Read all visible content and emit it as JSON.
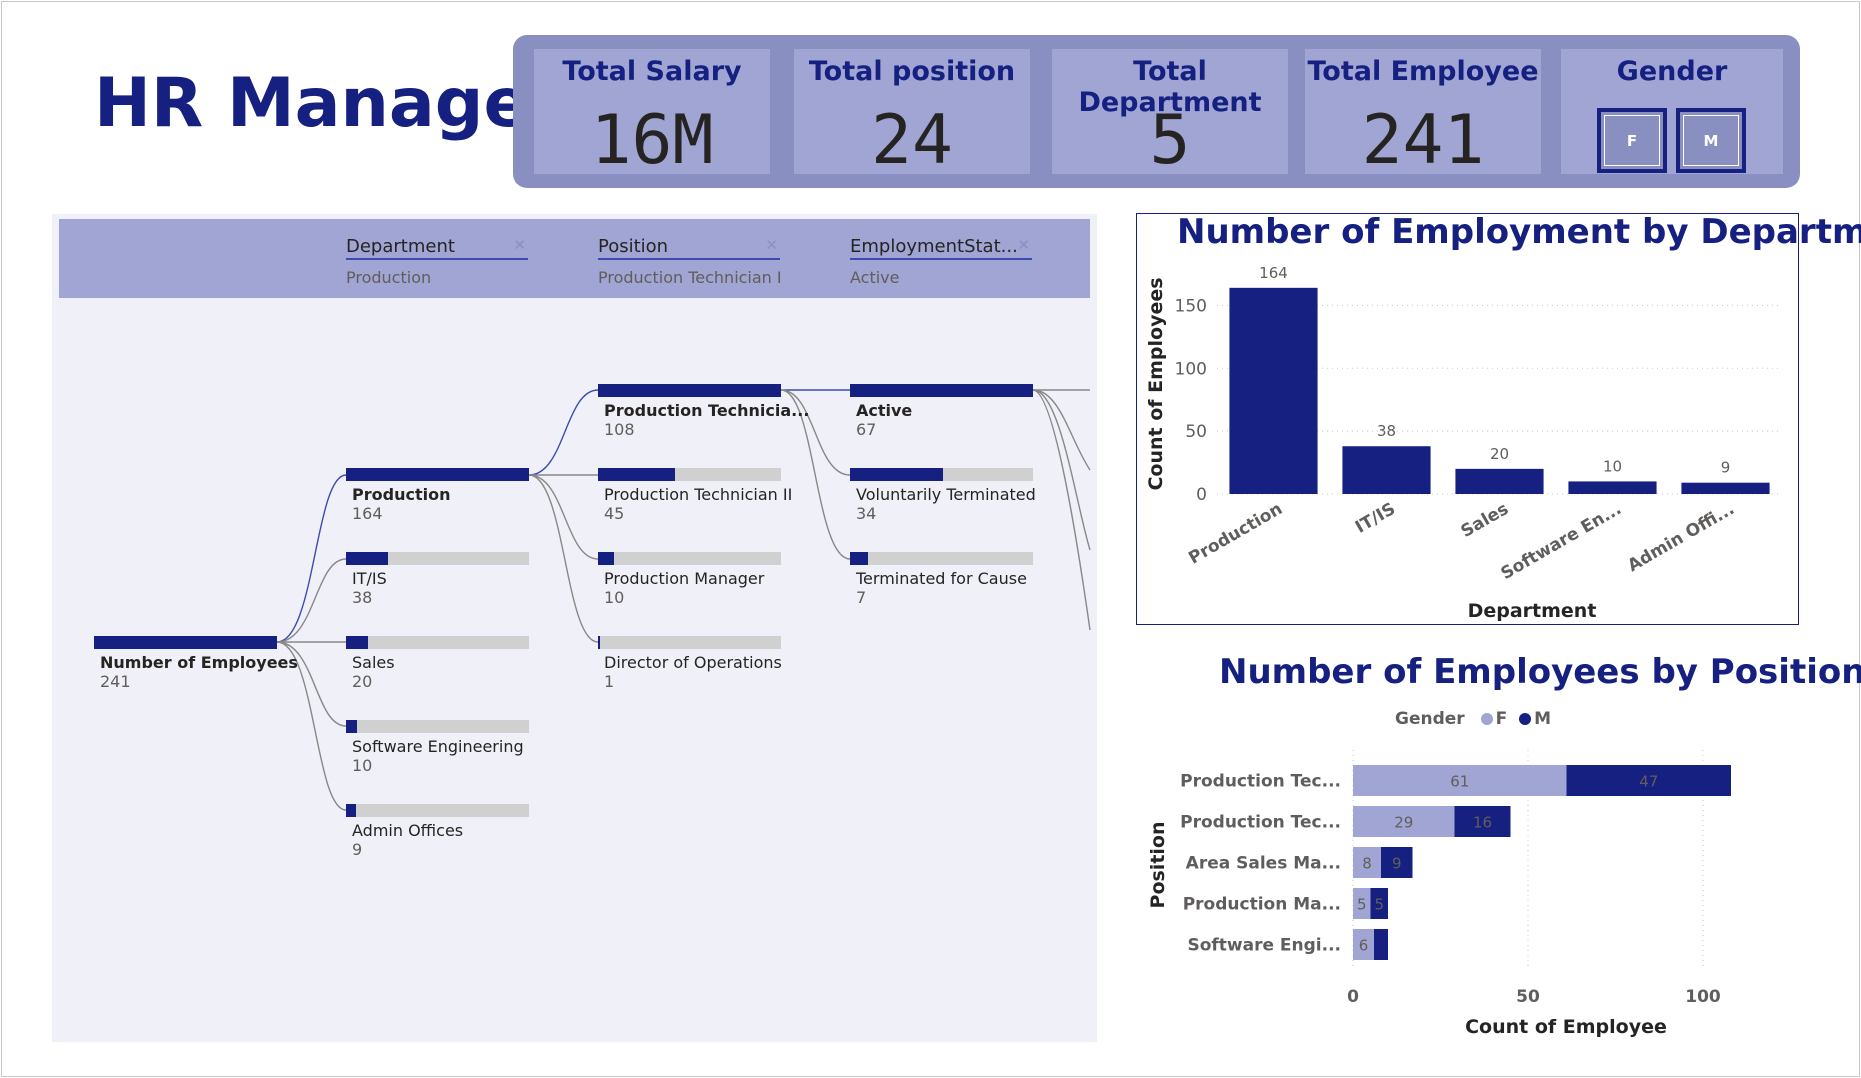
{
  "title": "HR Manager",
  "kpis": [
    {
      "label": "Total Salary",
      "value": "16M"
    },
    {
      "label": "Total position",
      "value": "24"
    },
    {
      "label": "Total Department",
      "value": "5"
    },
    {
      "label": "Total Employee",
      "value": "241"
    }
  ],
  "gender_slicer": {
    "label": "Gender",
    "options": [
      "F",
      "M"
    ]
  },
  "tree": {
    "columns": [
      {
        "title": "Department",
        "selected": "Production"
      },
      {
        "title": "Position",
        "selected": "Production Technician I"
      },
      {
        "title": "EmploymentStat...",
        "selected": "Active"
      }
    ],
    "root": {
      "label": "Number of Employees",
      "value": "241"
    },
    "level1": [
      {
        "label": "Production",
        "value": "164"
      },
      {
        "label": "IT/IS",
        "value": "38"
      },
      {
        "label": "Sales",
        "value": "20"
      },
      {
        "label": "Software Engineering",
        "value": "10"
      },
      {
        "label": "Admin Offices",
        "value": "9"
      }
    ],
    "level2": [
      {
        "label": "Production Technicia...",
        "value": "108"
      },
      {
        "label": "Production Technician II",
        "value": "45"
      },
      {
        "label": "Production Manager",
        "value": "10"
      },
      {
        "label": "Director of Operations",
        "value": "1"
      }
    ],
    "level3": [
      {
        "label": "Active",
        "value": "67"
      },
      {
        "label": "Voluntarily Terminated",
        "value": "34"
      },
      {
        "label": "Terminated for Cause",
        "value": "7"
      }
    ]
  },
  "chart_data": [
    {
      "type": "bar",
      "title": "Number of Employment by Department",
      "xlabel": "Department",
      "ylabel": "Count of Employees",
      "categories": [
        "Production",
        "IT/IS",
        "Sales",
        "Software En...",
        "Admin Offi..."
      ],
      "values": [
        164,
        38,
        20,
        10,
        9
      ],
      "yticks": [
        0,
        50,
        100,
        150
      ],
      "ylim": [
        0,
        175
      ],
      "color": "#152080"
    },
    {
      "type": "bar",
      "orientation": "horizontal",
      "stacked": true,
      "title": "Number of Employees by Position",
      "xlabel": "Count of Employee",
      "ylabel": "Position",
      "legend_title": "Gender",
      "categories": [
        "Production Tec...",
        "Production Tec...",
        "Area Sales Ma...",
        "Production Ma...",
        "Software Engi..."
      ],
      "series": [
        {
          "name": "F",
          "color": "#a0a5d4",
          "values": [
            61,
            29,
            8,
            5,
            6
          ]
        },
        {
          "name": "M",
          "color": "#152080",
          "values": [
            47,
            16,
            9,
            5,
            4
          ]
        }
      ],
      "data_labels": [
        [
          "61",
          "47"
        ],
        [
          "29",
          "16"
        ],
        [
          "8",
          "9"
        ],
        [
          "5",
          "5"
        ],
        [
          "6",
          null
        ]
      ],
      "xticks": [
        0,
        50,
        100
      ],
      "xlim": [
        0,
        109
      ]
    }
  ]
}
